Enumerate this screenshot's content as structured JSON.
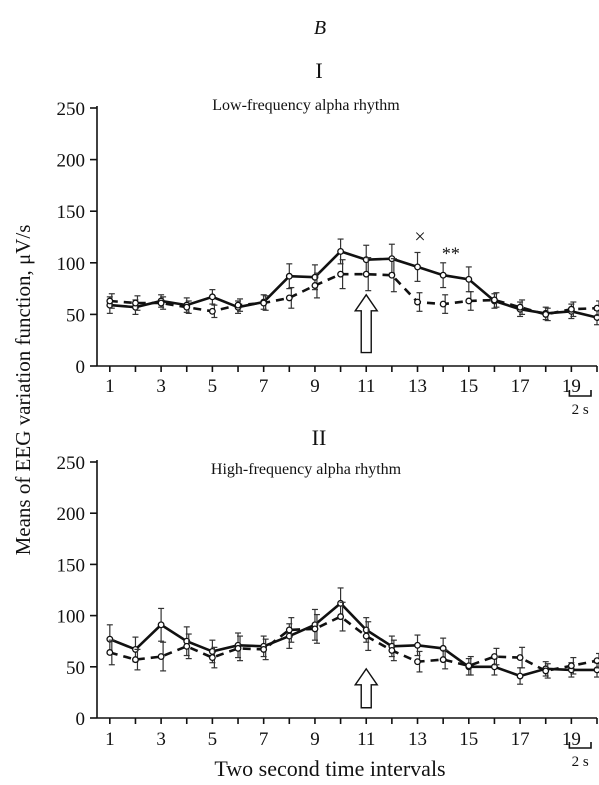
{
  "figure": {
    "panel_letter": "B",
    "ylabel": "Means of EEG variation function, μV/s",
    "xlabel": "Two second time intervals",
    "scalebar_label": "2 s"
  },
  "chart_data": [
    {
      "type": "line",
      "panel": "I",
      "title": "Low-frequency alpha rhythm",
      "x": [
        1,
        2,
        3,
        4,
        5,
        6,
        7,
        8,
        9,
        10,
        11,
        12,
        13,
        14,
        15,
        16,
        17,
        18,
        19,
        20
      ],
      "xticks": [
        1,
        3,
        5,
        7,
        9,
        11,
        13,
        15,
        17,
        19
      ],
      "yticks": [
        0,
        50,
        100,
        150,
        200,
        250
      ],
      "ylim": [
        0,
        250
      ],
      "xlim": [
        0.5,
        20
      ],
      "series": [
        {
          "style": "solid",
          "values": [
            59,
            57,
            63,
            59,
            67,
            57,
            62,
            87,
            86,
            111,
            103,
            104,
            96,
            88,
            84,
            63,
            55,
            51,
            53,
            47
          ]
        },
        {
          "style": "dashed",
          "values": [
            63,
            61,
            61,
            57,
            53,
            59,
            61,
            66,
            78,
            89,
            89,
            88,
            62,
            60,
            63,
            64,
            57,
            50,
            55,
            56
          ]
        }
      ],
      "error": [
        {
          "style": "solid",
          "values": [
            8,
            7,
            6,
            7,
            7,
            6,
            7,
            12,
            12,
            12,
            14,
            14,
            14,
            12,
            12,
            7,
            7,
            6,
            7,
            7
          ]
        },
        {
          "style": "dashed",
          "values": [
            7,
            7,
            6,
            6,
            6,
            6,
            7,
            10,
            12,
            14,
            16,
            16,
            9,
            9,
            9,
            7,
            7,
            6,
            7,
            7
          ]
        }
      ],
      "annotations": [
        "×",
        "**"
      ],
      "stimulus_arrow_x": 11
    },
    {
      "type": "line",
      "panel": "II",
      "title": "High-frequency alpha rhythm",
      "x": [
        1,
        2,
        3,
        4,
        5,
        6,
        7,
        8,
        9,
        10,
        11,
        12,
        13,
        14,
        15,
        16,
        17,
        18,
        19,
        20
      ],
      "xticks": [
        1,
        3,
        5,
        7,
        9,
        11,
        13,
        15,
        17,
        19
      ],
      "yticks": [
        0,
        50,
        100,
        150,
        200,
        250
      ],
      "ylim": [
        0,
        250
      ],
      "xlim": [
        0.5,
        20
      ],
      "series": [
        {
          "style": "solid",
          "values": [
            77,
            67,
            91,
            75,
            65,
            71,
            70,
            80,
            91,
            112,
            86,
            70,
            71,
            68,
            50,
            50,
            41,
            48,
            47,
            47
          ]
        },
        {
          "style": "dashed",
          "values": [
            64,
            57,
            60,
            70,
            59,
            68,
            67,
            86,
            87,
            99,
            80,
            66,
            55,
            57,
            51,
            60,
            59,
            46,
            51,
            56
          ]
        }
      ],
      "error": [
        {
          "style": "solid",
          "values": [
            14,
            12,
            16,
            14,
            11,
            12,
            10,
            12,
            15,
            15,
            12,
            10,
            10,
            10,
            8,
            8,
            8,
            7,
            7,
            7
          ]
        },
        {
          "style": "dashed",
          "values": [
            12,
            10,
            14,
            12,
            10,
            12,
            10,
            12,
            14,
            14,
            14,
            10,
            10,
            9,
            9,
            8,
            10,
            7,
            8,
            7
          ]
        }
      ],
      "stimulus_arrow_x": 11
    }
  ]
}
